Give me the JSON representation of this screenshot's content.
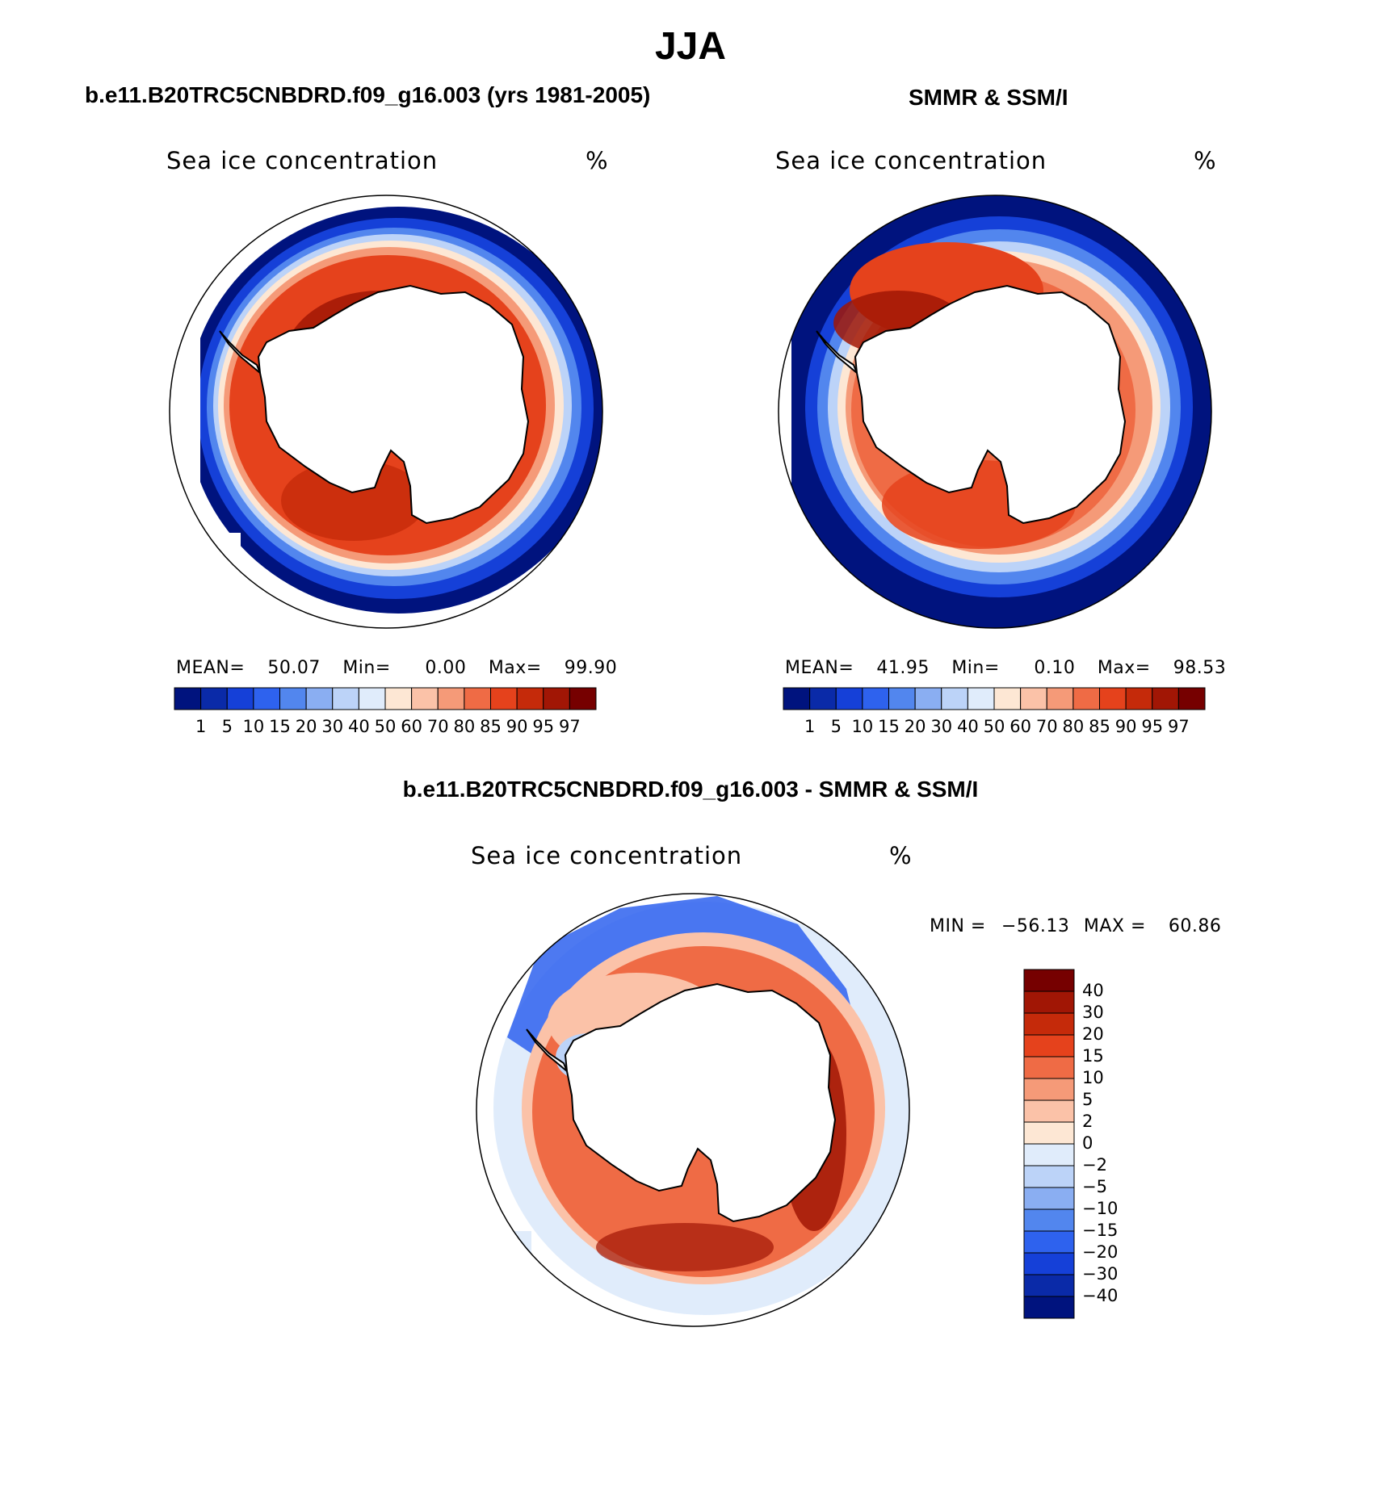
{
  "title": "JJA",
  "panels": [
    {
      "title": "b.e11.B20TRC5CNBDRD.f09_g16.003 (yrs 1981-2005)",
      "variable": "Sea ice concentration",
      "units": "%",
      "stats": {
        "mean_label": "MEAN=",
        "mean": "50.07",
        "min_label": "Min=",
        "min": "0.00",
        "max_label": "Max=",
        "max": "99.90"
      }
    },
    {
      "title": "SMMR & SSM/I",
      "variable": "Sea ice concentration",
      "units": "%",
      "stats": {
        "mean_label": "MEAN=",
        "mean": "41.95",
        "min_label": "Min=",
        "min": "0.10",
        "max_label": "Max=",
        "max": "98.53"
      }
    }
  ],
  "difference": {
    "title": "b.e11.B20TRC5CNBDRD.f09_g16.003 - SMMR & SSM/I",
    "variable": "Sea ice concentration",
    "units": "%",
    "stats": {
      "min_label": "MIN =",
      "min": "−56.13",
      "max_label": "MAX =",
      "max": "60.86"
    }
  },
  "colorbar_conc": {
    "levels": [
      "1",
      "5",
      "10",
      "15",
      "20",
      "30",
      "40",
      "50",
      "60",
      "70",
      "80",
      "85",
      "90",
      "95",
      "97"
    ],
    "colors": [
      "#00137e",
      "#0a2aa8",
      "#1540d8",
      "#2e62ee",
      "#5286ee",
      "#8aaef2",
      "#bcd3f8",
      "#e0ecfb",
      "#fde7d4",
      "#fbc2a8",
      "#f59a78",
      "#ef6b45",
      "#e5421c",
      "#c52a0a",
      "#a11605",
      "#760000"
    ]
  },
  "colorbar_diff": {
    "levels": [
      "40",
      "30",
      "20",
      "15",
      "10",
      "5",
      "2",
      "0",
      "−2",
      "−5",
      "−10",
      "−15",
      "−20",
      "−30",
      "−40"
    ],
    "colors": [
      "#760000",
      "#a11605",
      "#c52a0a",
      "#e5421c",
      "#ef6b45",
      "#f59a78",
      "#fbc2a8",
      "#fde7d4",
      "#e0ecfb",
      "#bcd3f8",
      "#8aaef2",
      "#5286ee",
      "#2e62ee",
      "#1540d8",
      "#0a2aa8",
      "#00137e"
    ]
  }
}
